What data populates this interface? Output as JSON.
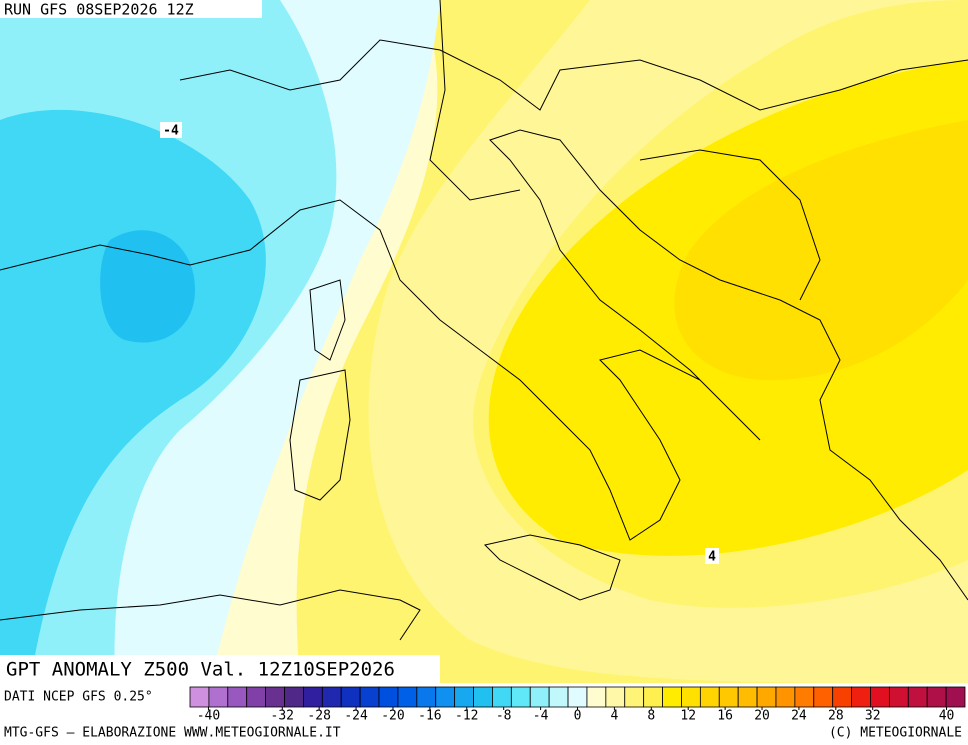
{
  "header": {
    "run": "RUN GFS 08SEP2026 12Z"
  },
  "contour_labels": [
    "-4",
    "4"
  ],
  "map_title": "GPT ANOMALY Z500 Val. 12Z10SEP2026",
  "source": "DATI NCEP GFS 0.25°",
  "colorbar": {
    "range": [
      -42,
      42
    ],
    "ticks": [
      -40,
      -32,
      -28,
      -24,
      -20,
      -16,
      -12,
      -8,
      -4,
      0,
      4,
      8,
      12,
      16,
      20,
      24,
      28,
      32,
      40
    ],
    "colors": [
      "#d090e0",
      "#b070d0",
      "#9858c0",
      "#8040a8",
      "#683090",
      "#502888",
      "#3020a0",
      "#2028b0",
      "#1030c0",
      "#0840d0",
      "#0050e0",
      "#0060e8",
      "#0878ec",
      "#1090f0",
      "#18a8f0",
      "#20c0f0",
      "#40d8f4",
      "#60e8f8",
      "#90f0fa",
      "#c0f8fc",
      "#e0fcff",
      "#fffcd0",
      "#fff8a8",
      "#fff478",
      "#fff050",
      "#ffec00",
      "#ffe000",
      "#ffd400",
      "#ffc800",
      "#ffbc00",
      "#ffa800",
      "#ff9400",
      "#ff7c00",
      "#ff6000",
      "#f84000",
      "#f02010",
      "#e01020",
      "#d01030",
      "#c01040",
      "#b01048",
      "#a01050"
    ]
  },
  "footer": {
    "left": "MTG-GFS — ELABORAZIONE WWW.METEOGIORNALE.IT",
    "right": "(C) METEOGIORNALE"
  }
}
